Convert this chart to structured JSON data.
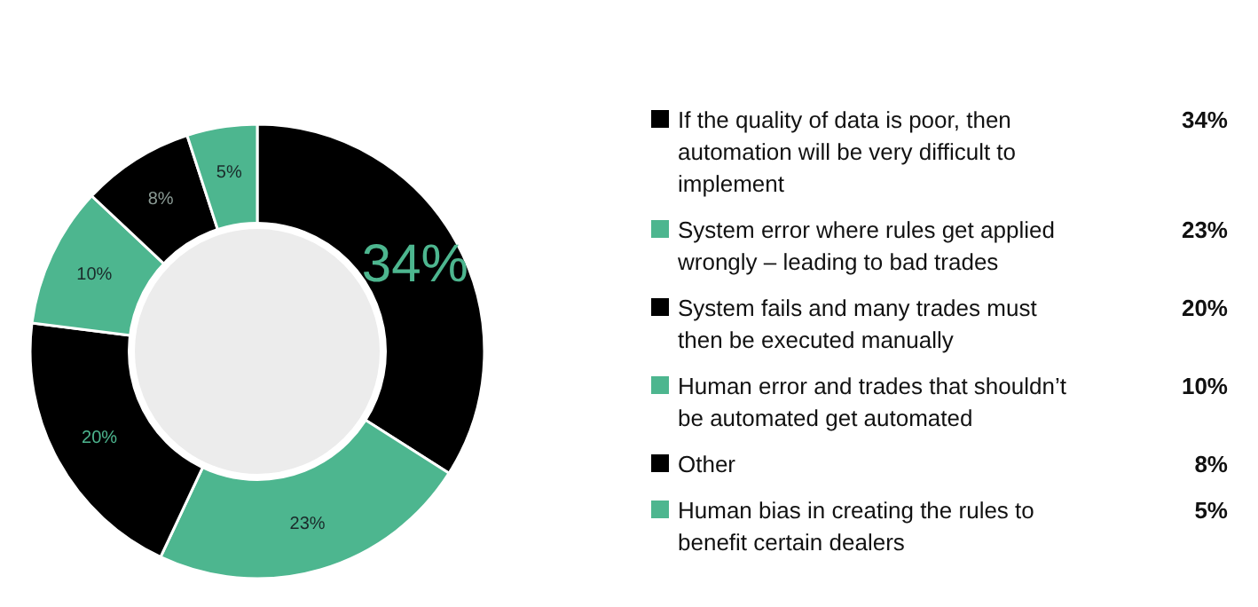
{
  "chart_data": {
    "type": "donut",
    "categories": [
      "If the quality of data is poor, then automation will be very difficult to implement",
      "System error where rules get applied wrongly – leading to bad trades",
      "System fails and many trades must then be executed manually",
      "Human error and trades that shouldn’t be automated get automated",
      "Other",
      "Human bias in creating the rules to benefit certain dealers"
    ],
    "values": [
      34,
      23,
      20,
      10,
      8,
      5
    ],
    "colors": [
      "#000000",
      "#4db68f",
      "#000000",
      "#4db68f",
      "#000000",
      "#4db68f"
    ],
    "value_labels": [
      "34%",
      "23%",
      "20%",
      "10%",
      "8%",
      "5%"
    ],
    "data_labels": true,
    "legend": "right"
  }
}
